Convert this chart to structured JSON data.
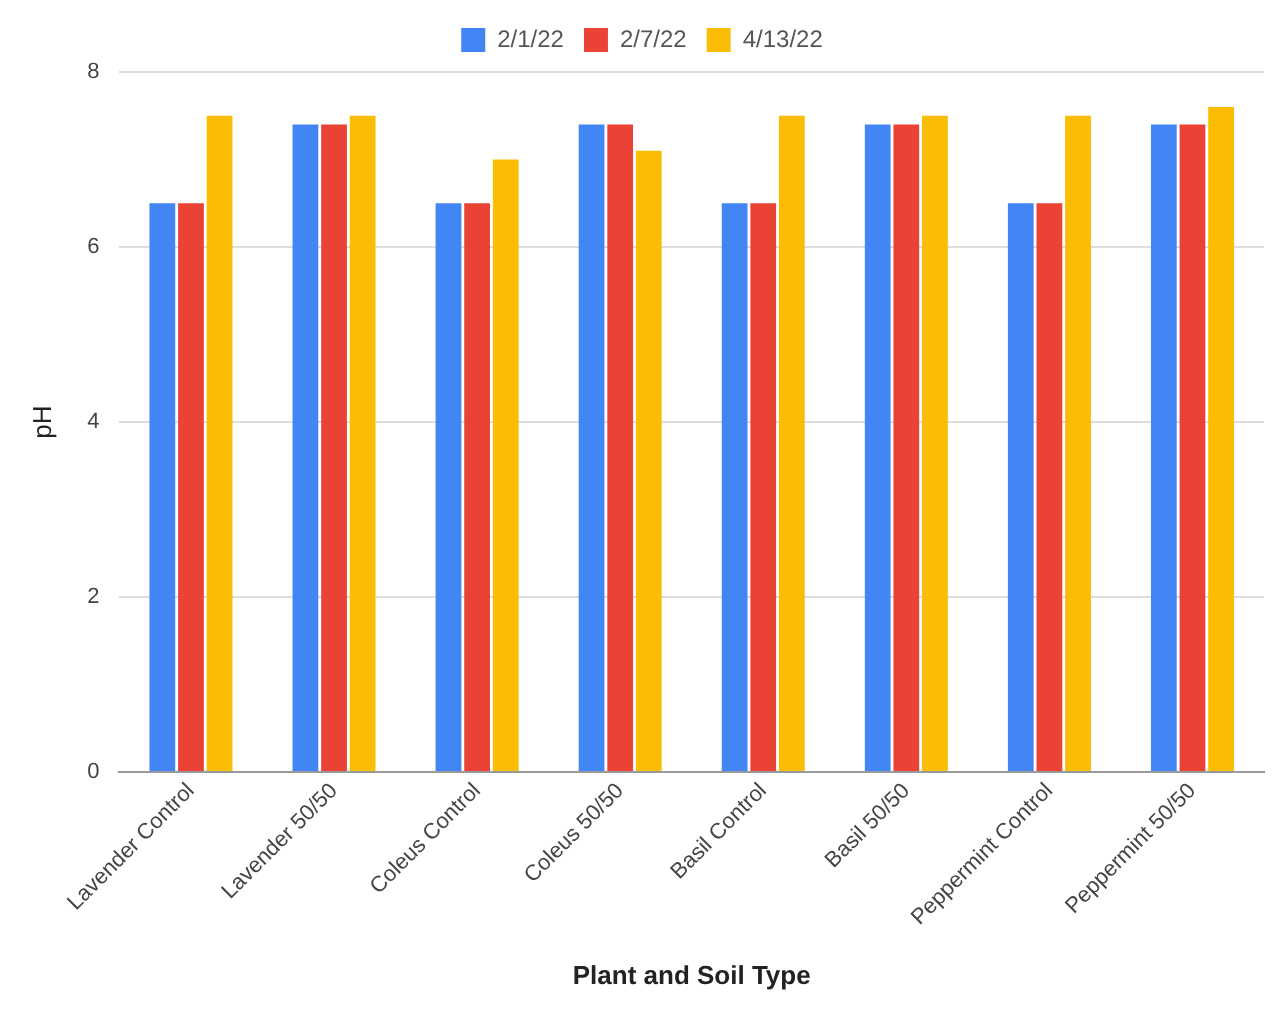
{
  "chart_data": {
    "type": "bar",
    "xlabel": "Plant and Soil Type",
    "ylabel": "pH",
    "categories": [
      "Lavender Control",
      "Lavender 50/50",
      "Coleus Control",
      "Coleus 50/50",
      "Basil Control",
      "Basil 50/50",
      "Peppermint Control",
      "Peppermint 50/50"
    ],
    "series": [
      {
        "name": "2/1/22",
        "color": "#4285f4",
        "values": [
          6.5,
          7.4,
          6.5,
          7.4,
          6.5,
          7.4,
          6.5,
          7.4
        ]
      },
      {
        "name": "2/7/22",
        "color": "#ea4335",
        "values": [
          6.5,
          7.4,
          6.5,
          7.4,
          6.5,
          7.4,
          6.5,
          7.4
        ]
      },
      {
        "name": "4/13/22",
        "color": "#fbbc04",
        "values": [
          7.5,
          7.5,
          7.0,
          7.1,
          7.5,
          7.5,
          7.5,
          7.6
        ]
      }
    ],
    "ylim": [
      0,
      8
    ],
    "yticks": [
      0,
      2,
      4,
      6,
      8
    ],
    "grid": "y",
    "legend": "top"
  }
}
